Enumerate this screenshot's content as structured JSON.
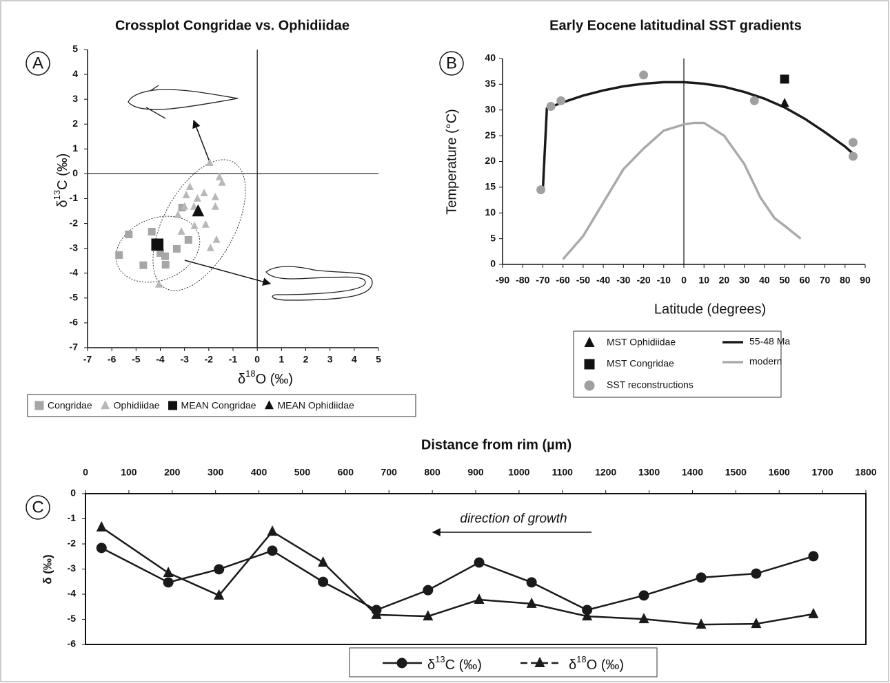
{
  "chart_data": [
    {
      "type": "scatter",
      "panel_label": "A",
      "title": "Crossplot Congridae vs. Ophidiidae",
      "x_label": {
        "prefix": "δ",
        "sup": "18",
        "suffix": "O (‰)"
      },
      "y_label": {
        "prefix": "δ",
        "sup": "13",
        "suffix": "C (‰)"
      },
      "xlim": [
        -7,
        5
      ],
      "ylim": [
        -7,
        5
      ],
      "xticks": [
        -7,
        -6,
        -5,
        -4,
        -3,
        -2,
        -1,
        0,
        1,
        2,
        3,
        4,
        5
      ],
      "yticks": [
        -7,
        -6,
        -5,
        -4,
        -3,
        -2,
        -1,
        0,
        1,
        2,
        3,
        4,
        5
      ],
      "series": [
        {
          "name": "Congridae",
          "color": "#a6a6a6",
          "marker": "square",
          "x": [
            -5.3,
            -5.7,
            -4.7,
            -4.35,
            -4.0,
            -3.8,
            -3.78,
            -3.32,
            -2.84,
            -3.1
          ],
          "values": [
            -2.44,
            -3.27,
            -3.68,
            -2.33,
            -3.19,
            -3.32,
            -3.66,
            -3.02,
            -2.66,
            -1.36
          ]
        },
        {
          "name": "Ophidiidae",
          "color": "#b8b8b8",
          "marker": "triangle",
          "x": [
            -1.96,
            -1.56,
            -1.45,
            -2.78,
            -2.93,
            -2.19,
            -2.47,
            -1.73,
            -3.0,
            -3.27,
            -2.61,
            -2.36,
            -1.73,
            -3.13,
            -2.59,
            -2.13,
            -1.68,
            -1.93,
            -4.06
          ],
          "values": [
            0.44,
            -0.14,
            -0.36,
            -0.53,
            -0.86,
            -0.78,
            -1.0,
            -0.94,
            -1.33,
            -1.66,
            -1.33,
            -1.55,
            -1.33,
            -2.33,
            -2.1,
            -2.05,
            -2.66,
            -2.99,
            -4.46
          ]
        },
        {
          "name": "MEAN Congridae",
          "color": "#111111",
          "marker": "square",
          "x": [
            -4.12
          ],
          "values": [
            -2.85
          ]
        },
        {
          "name": "MEAN Ophidiidae",
          "color": "#111111",
          "marker": "triangle",
          "x": [
            -2.44
          ],
          "values": [
            -1.52
          ]
        }
      ]
    },
    {
      "type": "line",
      "panel_label": "B",
      "title": "Early Eocene latitudinal SST gradients",
      "x_label": "Latitude (degrees)",
      "y_label": "Temperature (°C)",
      "xlim": [
        -90,
        90
      ],
      "ylim": [
        0,
        40
      ],
      "xticks": [
        -90,
        -80,
        -70,
        -60,
        -50,
        -40,
        -30,
        -20,
        -10,
        0,
        10,
        20,
        30,
        40,
        50,
        60,
        70,
        80,
        90
      ],
      "yticks": [
        0,
        5,
        10,
        15,
        20,
        25,
        30,
        35,
        40
      ],
      "series": [
        {
          "name": "MST Ophidiidae",
          "color": "#111111",
          "marker": "triangle",
          "x": [
            50
          ],
          "values": [
            31.3
          ]
        },
        {
          "name": "MST Congridae",
          "color": "#111111",
          "marker": "square",
          "x": [
            50
          ],
          "values": [
            36
          ]
        },
        {
          "name": "SST reconstructions",
          "color": "#a0a0a0",
          "marker": "circle",
          "x": [
            -71,
            -66,
            -61,
            -20,
            35,
            84,
            84
          ],
          "values": [
            14.5,
            30.7,
            31.8,
            36.8,
            31.8,
            23.7,
            21
          ]
        },
        {
          "name": "55-48 Ma",
          "color": "#1a1a1a",
          "line": true,
          "x": [
            -70,
            -68,
            -60,
            -50,
            -40,
            -30,
            -20,
            -10,
            0,
            10,
            20,
            30,
            40,
            50,
            60,
            70,
            80,
            84
          ],
          "values": [
            14.5,
            30.3,
            31.5,
            32.8,
            33.8,
            34.6,
            35.1,
            35.4,
            35.4,
            35.1,
            34.5,
            33.5,
            32.2,
            30.5,
            28.3,
            25.7,
            22.9,
            21.5
          ]
        },
        {
          "name": "modern",
          "color": "#aaaaaa",
          "line": true,
          "x": [
            -60,
            -50,
            -40,
            -30,
            -20,
            -10,
            0,
            5,
            10,
            20,
            30,
            38,
            45,
            50,
            58
          ],
          "values": [
            1,
            5.5,
            12,
            18.5,
            22.5,
            26,
            27.2,
            27.5,
            27.5,
            25,
            19.5,
            13,
            9,
            7.5,
            5
          ]
        }
      ]
    },
    {
      "type": "line",
      "panel_label": "C",
      "x_label": "Distance from rim (µm)",
      "y_label": "δ (‰)",
      "annotation": "direction of growth",
      "xlim": [
        0,
        1800
      ],
      "ylim": [
        -6,
        0
      ],
      "xticks": [
        0,
        100,
        200,
        300,
        400,
        500,
        600,
        700,
        800,
        900,
        1000,
        1100,
        1200,
        1300,
        1400,
        1500,
        1600,
        1700,
        1800
      ],
      "yticks": [
        0,
        -1,
        -2,
        -3,
        -4,
        -5,
        -6
      ],
      "x": [
        37,
        191,
        308,
        431,
        548,
        671,
        790,
        908,
        1029,
        1157,
        1288,
        1420,
        1547,
        1679
      ],
      "series": [
        {
          "name": {
            "prefix": "δ",
            "sup": "13",
            "suffix": "C (‰)"
          },
          "color": "#1a1a1a",
          "marker": "circle",
          "line": true,
          "values": [
            -2.16,
            -3.53,
            -3.01,
            -2.27,
            -3.51,
            -4.63,
            -3.84,
            -2.74,
            -3.53,
            -4.63,
            -4.05,
            -3.34,
            -3.18,
            -2.49
          ]
        },
        {
          "name": {
            "prefix": "δ",
            "sup": "18",
            "suffix": "O (‰)"
          },
          "color": "#1a1a1a",
          "marker": "triangle",
          "line": true,
          "values": [
            -1.34,
            -3.15,
            -4.05,
            -1.51,
            -2.74,
            -4.82,
            -4.88,
            -4.22,
            -4.38,
            -4.88,
            -4.99,
            -5.21,
            -5.18,
            -4.79
          ]
        }
      ]
    }
  ]
}
